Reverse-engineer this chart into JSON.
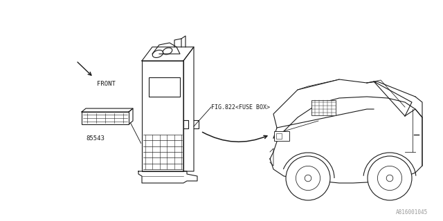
{
  "bg_color": "#ffffff",
  "line_color": "#1a1a1a",
  "text_color": "#1a1a1a",
  "watermark": "A816001045",
  "label_front": "FRONT",
  "label_part": "85543",
  "label_fig": "FIG.822<FUSE BOX>",
  "figsize": [
    6.4,
    3.2
  ],
  "dpi": 100
}
